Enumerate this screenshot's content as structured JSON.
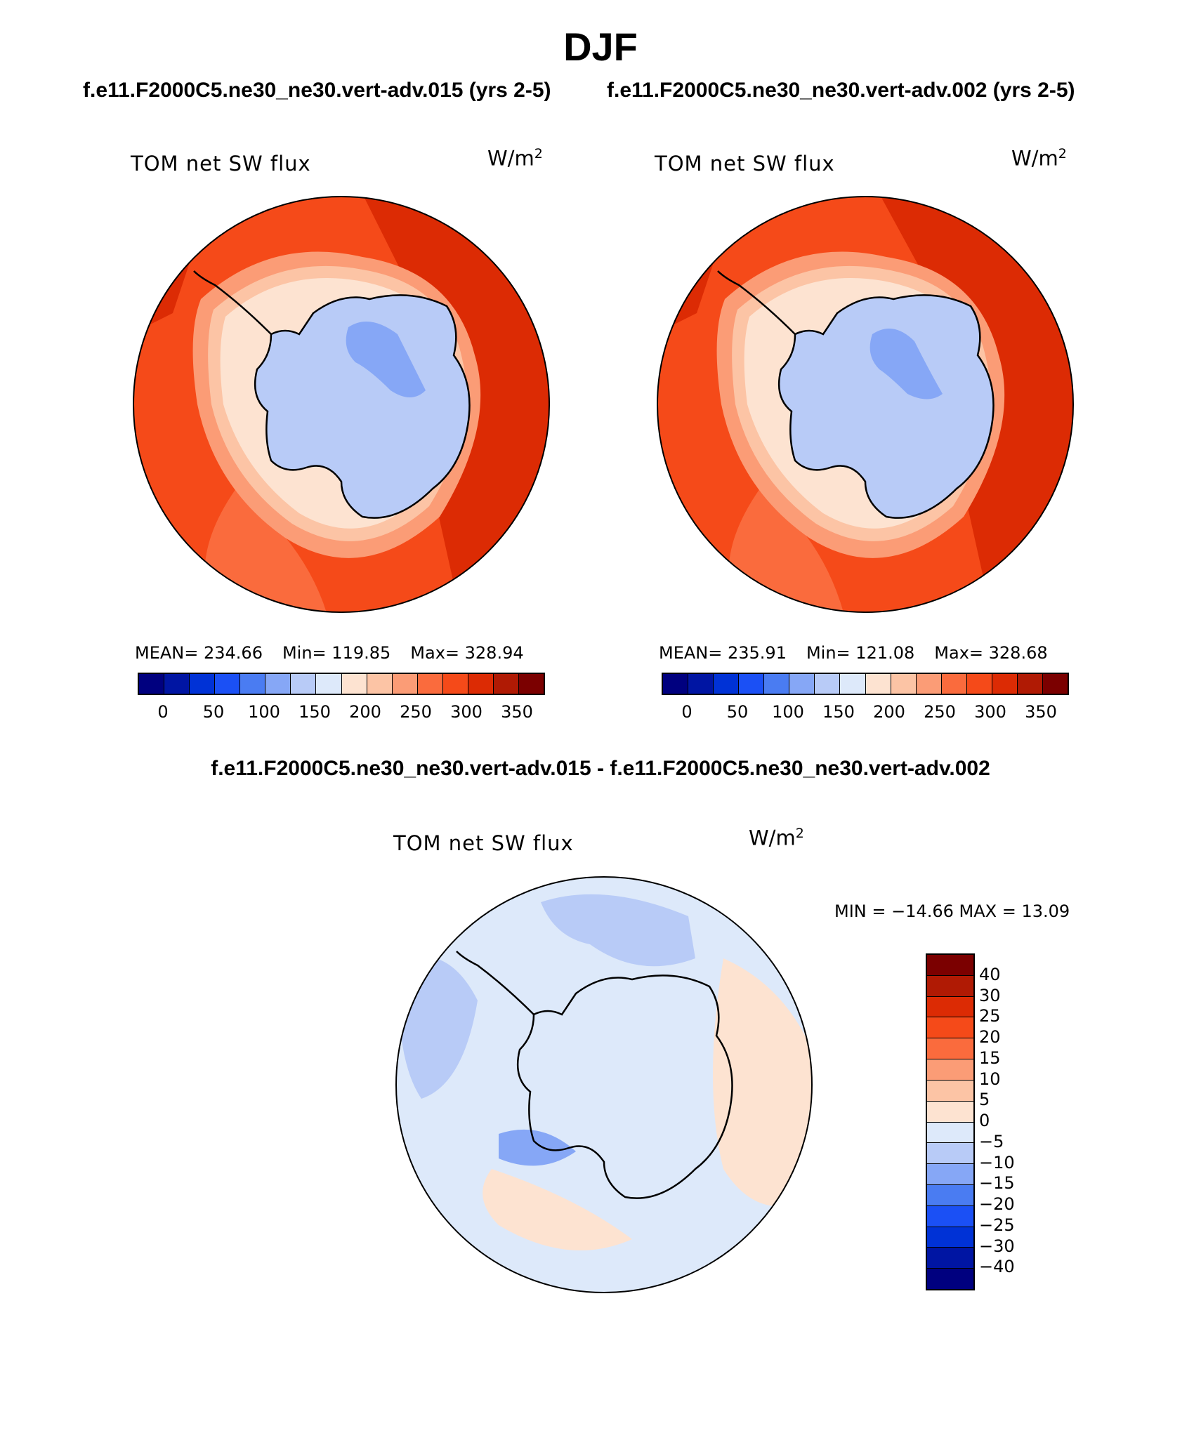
{
  "main_title": "DJF",
  "left_case": "f.e11.F2000C5.ne30_ne30.vert-adv.015 (yrs 2-5)",
  "right_case": "f.e11.F2000C5.ne30_ne30.vert-adv.002 (yrs 2-5)",
  "diff_title": "f.e11.F2000C5.ne30_ne30.vert-adv.015 - f.e11.F2000C5.ne30_ne30.vert-adv.002",
  "panels": [
    {
      "label": "TOM net SW flux",
      "units_base": "W/m",
      "units_exp": "2",
      "mean_text": "MEAN= 234.66",
      "min_text": "Min= 119.85",
      "max_text": "Max= 328.94"
    },
    {
      "label": "TOM net SW flux",
      "units_base": "W/m",
      "units_exp": "2",
      "mean_text": "MEAN= 235.91",
      "min_text": "Min= 121.08",
      "max_text": "Max= 328.68"
    }
  ],
  "diff_panel": {
    "label": "TOM net SW flux",
    "units_base": "W/m",
    "units_exp": "2",
    "minmax_text": "MIN = −14.66 MAX =   13.09"
  },
  "abs_colorbar": {
    "colors": [
      "#00007f",
      "#0015a3",
      "#0032d6",
      "#1b50f5",
      "#4a7cf2",
      "#86a7f6",
      "#b8cbf7",
      "#dde9fa",
      "#fde3d1",
      "#fcc4a5",
      "#fb9c76",
      "#fa6b3d",
      "#f54a19",
      "#dc2b04",
      "#b01a04",
      "#7b0000"
    ],
    "tick_labels": [
      "0",
      "50",
      "100",
      "150",
      "200",
      "250",
      "300",
      "350"
    ]
  },
  "diff_colorbar": {
    "colors": [
      "#7b0000",
      "#b01a04",
      "#dc2b04",
      "#f54a19",
      "#fa6b3d",
      "#fb9c76",
      "#fcc4a5",
      "#fde3d1",
      "#dde9fa",
      "#b8cbf7",
      "#86a7f6",
      "#4a7cf2",
      "#1b50f5",
      "#0032d6",
      "#0015a3",
      "#00007f"
    ],
    "tick_labels": [
      "40",
      "30",
      "25",
      "20",
      "15",
      "10",
      "5",
      "0",
      "−5",
      "−10",
      "−15",
      "−20",
      "−25",
      "−30",
      "−40"
    ]
  },
  "map_colors": {
    "ocean_main": "#f54a19",
    "ocean_warm": "#dc2b04",
    "ocean_mid": "#fa6b3d",
    "ice_edge_1": "#fb9c76",
    "ice_edge_2": "#fcc4a5",
    "ice_edge_3": "#fde3d1",
    "continent": "#b8cbf7",
    "continent_dark": "#86a7f6",
    "diff_base": "#dde9fa",
    "diff_pos": "#fde3d1",
    "diff_neg": "#b8cbf7",
    "diff_neg_strong": "#86a7f6"
  }
}
